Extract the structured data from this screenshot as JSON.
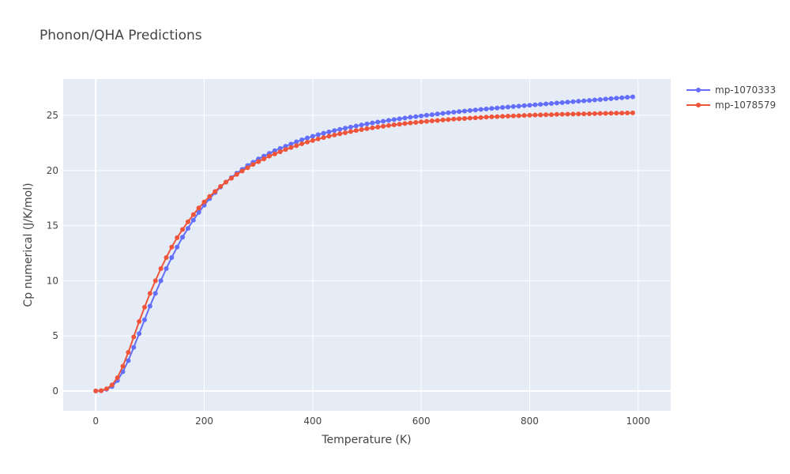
{
  "chart_data": {
    "type": "line",
    "title": "Phonon/QHA Predictions",
    "xlabel": "Temperature (K)",
    "ylabel": "Cp numerical (J/K/mol)",
    "xlim": [
      -60,
      1060
    ],
    "ylim": [
      -1.8,
      28.3
    ],
    "xticks": [
      0,
      200,
      400,
      600,
      800,
      1000
    ],
    "yticks": [
      0,
      5,
      10,
      15,
      20,
      25
    ],
    "grid": true,
    "legend_position": "top-right",
    "background_color": "#e5ecf6",
    "series": [
      {
        "name": "mp-1070333",
        "color": "#636efa",
        "x": [
          0,
          10,
          20,
          30,
          40,
          50,
          60,
          70,
          80,
          90,
          100,
          110,
          120,
          130,
          140,
          150,
          160,
          170,
          180,
          190,
          200,
          210,
          220,
          230,
          240,
          250,
          260,
          270,
          280,
          290,
          300,
          310,
          320,
          330,
          340,
          350,
          360,
          370,
          380,
          390,
          400,
          410,
          420,
          430,
          440,
          450,
          460,
          470,
          480,
          490,
          500,
          510,
          520,
          530,
          540,
          550,
          560,
          570,
          580,
          590,
          600,
          610,
          620,
          630,
          640,
          650,
          660,
          670,
          680,
          690,
          700,
          710,
          720,
          730,
          740,
          750,
          760,
          770,
          780,
          790,
          800,
          810,
          820,
          830,
          840,
          850,
          860,
          870,
          880,
          890,
          900,
          910,
          920,
          930,
          940,
          950,
          960,
          970,
          980,
          990
        ],
        "y": [
          0,
          0.02,
          0.15,
          0.4,
          0.95,
          1.75,
          2.75,
          3.95,
          5.2,
          6.45,
          7.7,
          8.85,
          10.0,
          11.1,
          12.1,
          13.05,
          13.95,
          14.75,
          15.5,
          16.2,
          16.85,
          17.45,
          18.0,
          18.5,
          18.95,
          19.35,
          19.75,
          20.1,
          20.45,
          20.75,
          21.05,
          21.3,
          21.55,
          21.8,
          22.0,
          22.2,
          22.4,
          22.6,
          22.78,
          22.95,
          23.1,
          23.25,
          23.38,
          23.5,
          23.62,
          23.73,
          23.84,
          23.94,
          24.04,
          24.13,
          24.22,
          24.31,
          24.39,
          24.47,
          24.55,
          24.62,
          24.69,
          24.76,
          24.83,
          24.89,
          24.95,
          25.01,
          25.07,
          25.13,
          25.18,
          25.24,
          25.29,
          25.34,
          25.39,
          25.44,
          25.49,
          25.54,
          25.58,
          25.63,
          25.67,
          25.72,
          25.76,
          25.8,
          25.84,
          25.88,
          25.92,
          25.96,
          26.0,
          26.04,
          26.08,
          26.12,
          26.16,
          26.2,
          26.24,
          26.28,
          26.32,
          26.36,
          26.4,
          26.44,
          26.48,
          26.52,
          26.56,
          26.6,
          26.64,
          26.68
        ]
      },
      {
        "name": "mp-1078579",
        "color": "#ef553b",
        "x": [
          0,
          10,
          20,
          30,
          40,
          50,
          60,
          70,
          80,
          90,
          100,
          110,
          120,
          130,
          140,
          150,
          160,
          170,
          180,
          190,
          200,
          210,
          220,
          230,
          240,
          250,
          260,
          270,
          280,
          290,
          300,
          310,
          320,
          330,
          340,
          350,
          360,
          370,
          380,
          390,
          400,
          410,
          420,
          430,
          440,
          450,
          460,
          470,
          480,
          490,
          500,
          510,
          520,
          530,
          540,
          550,
          560,
          570,
          580,
          590,
          600,
          610,
          620,
          630,
          640,
          650,
          660,
          670,
          680,
          690,
          700,
          710,
          720,
          730,
          740,
          750,
          760,
          770,
          780,
          790,
          800,
          810,
          820,
          830,
          840,
          850,
          860,
          870,
          880,
          890,
          900,
          910,
          920,
          930,
          940,
          950,
          960,
          970,
          980,
          990
        ],
        "y": [
          0,
          0.03,
          0.2,
          0.55,
          1.2,
          2.25,
          3.5,
          4.9,
          6.3,
          7.6,
          8.85,
          10.0,
          11.1,
          12.1,
          13.05,
          13.9,
          14.65,
          15.35,
          16.0,
          16.6,
          17.15,
          17.65,
          18.1,
          18.55,
          18.95,
          19.3,
          19.65,
          19.95,
          20.25,
          20.55,
          20.8,
          21.05,
          21.3,
          21.5,
          21.7,
          21.9,
          22.08,
          22.25,
          22.42,
          22.58,
          22.72,
          22.86,
          22.99,
          23.11,
          23.22,
          23.33,
          23.43,
          23.53,
          23.62,
          23.71,
          23.79,
          23.87,
          23.94,
          24.01,
          24.08,
          24.14,
          24.2,
          24.26,
          24.31,
          24.36,
          24.41,
          24.46,
          24.5,
          24.54,
          24.58,
          24.62,
          24.66,
          24.69,
          24.72,
          24.75,
          24.78,
          24.81,
          24.84,
          24.87,
          24.89,
          24.91,
          24.93,
          24.95,
          24.97,
          24.99,
          25.01,
          25.03,
          25.04,
          25.06,
          25.07,
          25.09,
          25.1,
          25.11,
          25.12,
          25.13,
          25.14,
          25.15,
          25.16,
          25.17,
          25.18,
          25.19,
          25.2,
          25.21,
          25.22,
          25.23
        ]
      }
    ]
  }
}
